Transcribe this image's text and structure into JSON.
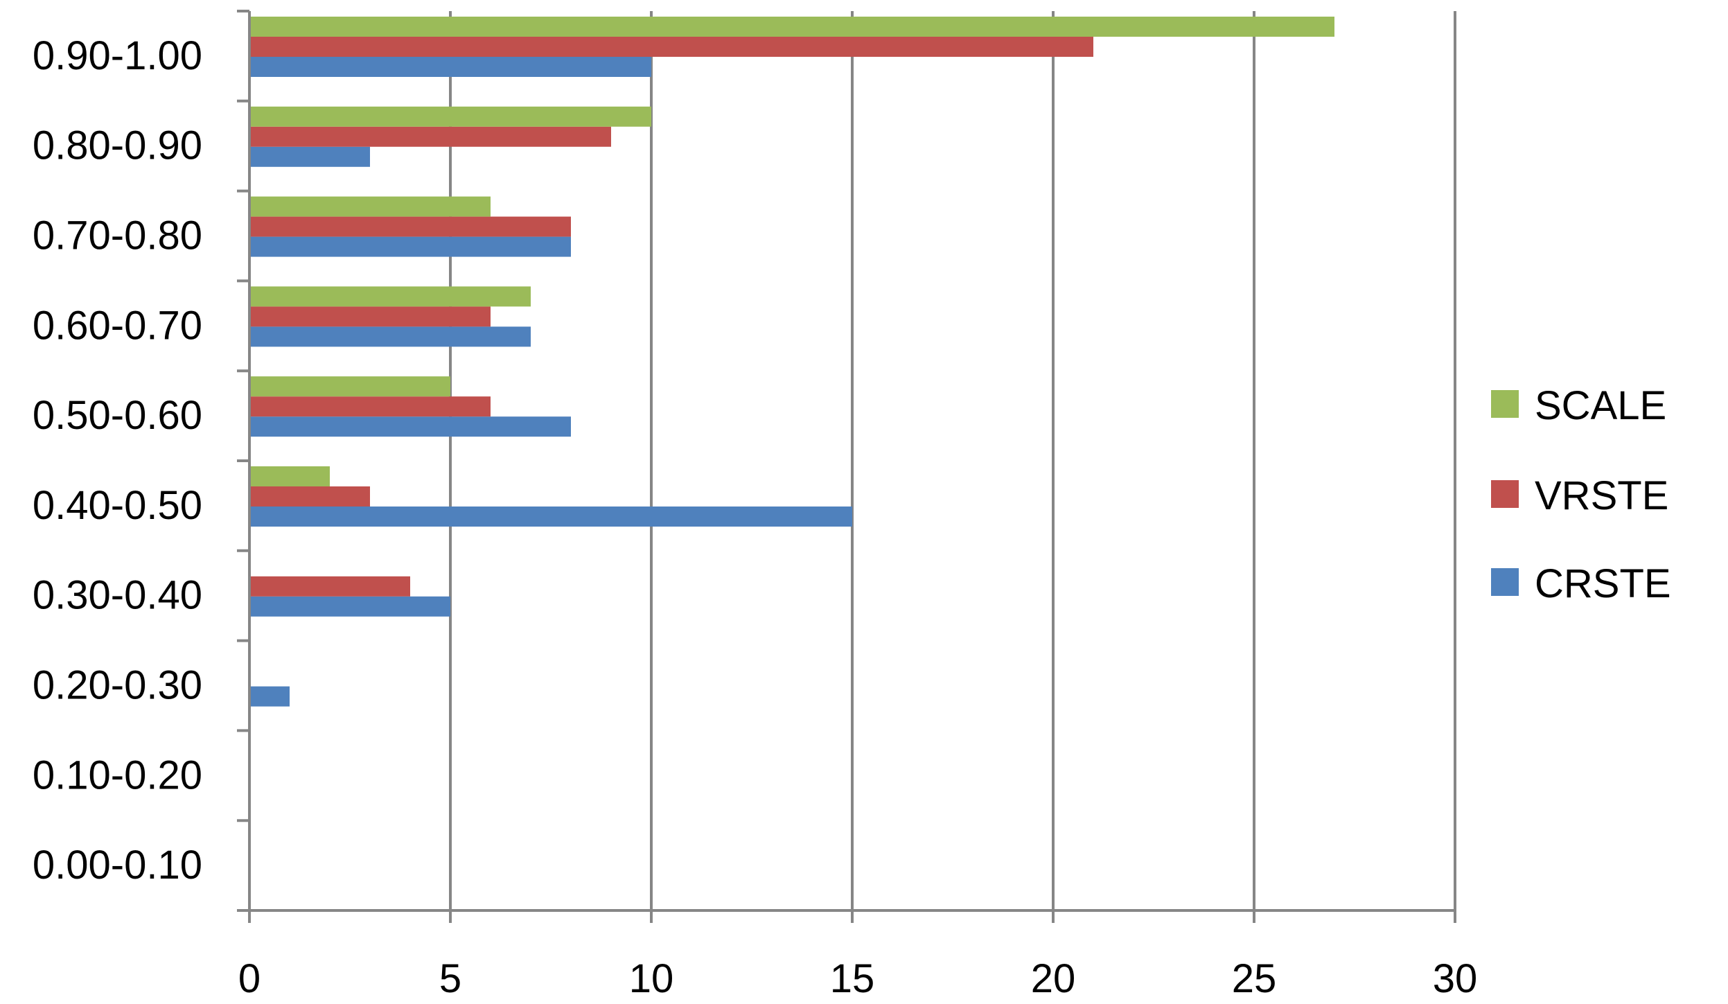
{
  "chart_data": {
    "type": "bar",
    "orientation": "horizontal",
    "categories": [
      "0.00-0.10",
      "0.10-0.20",
      "0.20-0.30",
      "0.30-0.40",
      "0.40-0.50",
      "0.50-0.60",
      "0.60-0.70",
      "0.70-0.80",
      "0.80-0.90",
      "0.90-1.00"
    ],
    "series": [
      {
        "name": "CRSTE",
        "color": "#4f81bd",
        "values": [
          0,
          0,
          1,
          5,
          15,
          8,
          7,
          8,
          3,
          10
        ]
      },
      {
        "name": "VRSTE",
        "color": "#c0504d",
        "values": [
          0,
          0,
          0,
          4,
          3,
          6,
          6,
          8,
          9,
          21
        ]
      },
      {
        "name": "SCALE",
        "color": "#9bbb59",
        "values": [
          0,
          0,
          0,
          0,
          2,
          5,
          7,
          6,
          10,
          27
        ]
      }
    ],
    "xlim": [
      0,
      30
    ],
    "x_ticks": [
      "0",
      "5",
      "10",
      "15",
      "20",
      "25",
      "30"
    ],
    "grid": "vertical",
    "legend_position": "right",
    "legend_order": [
      "SCALE",
      "VRSTE",
      "CRSTE"
    ],
    "title": "",
    "xlabel": "",
    "ylabel": ""
  }
}
